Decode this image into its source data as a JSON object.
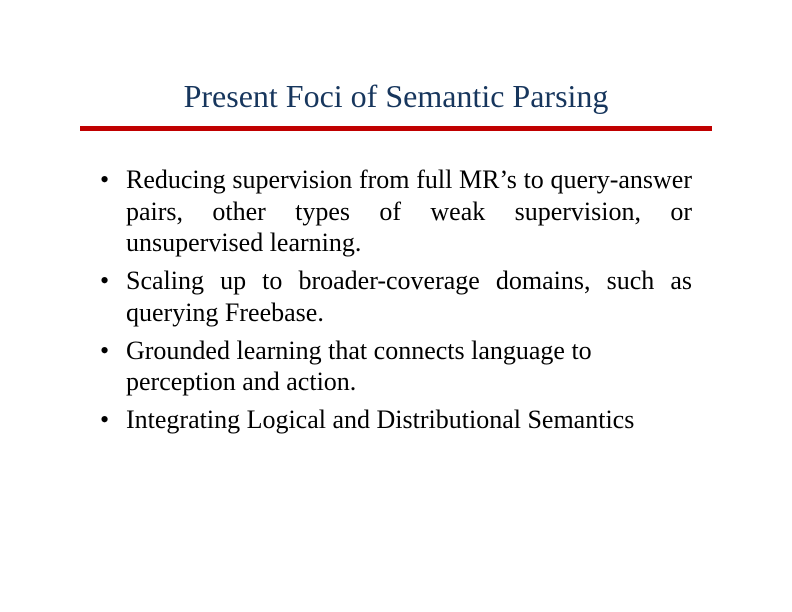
{
  "slide": {
    "title": "Present Foci of Semantic Parsing",
    "title_color": "#17365d",
    "title_fontsize": 32,
    "rule_color": "#c00000",
    "rule_height": 5,
    "body_color": "#000000",
    "body_fontsize": 26,
    "background_color": "#ffffff",
    "bullets": [
      {
        "text": "Reducing supervision from full MR’s to query-answer pairs, other types of weak supervision, or unsupervised learning.",
        "justify": true
      },
      {
        "text": "Scaling up to broader-coverage domains, such as querying Freebase.",
        "justify": true
      },
      {
        "text": "Grounded learning that connects language to perception and action.",
        "justify": false
      },
      {
        "text": "Integrating Logical and Distributional Semantics",
        "justify": false
      }
    ]
  }
}
